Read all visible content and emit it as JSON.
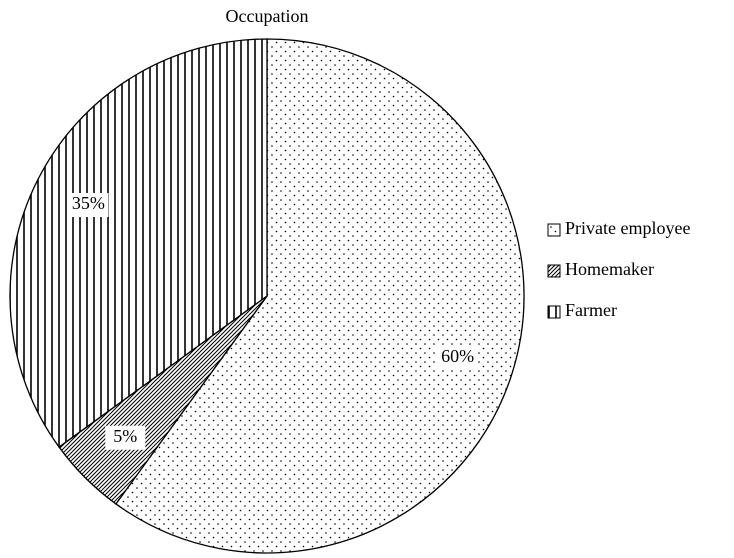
{
  "chart_data": {
    "type": "pie",
    "title": "Occupation",
    "categories": [
      "Private employee",
      "Homemaker",
      "Farmer"
    ],
    "values": [
      60,
      5,
      35
    ],
    "value_labels": [
      "60%",
      "5%",
      "35%"
    ],
    "patterns": [
      "dots",
      "diagonal",
      "vertical"
    ],
    "legend": "right"
  }
}
